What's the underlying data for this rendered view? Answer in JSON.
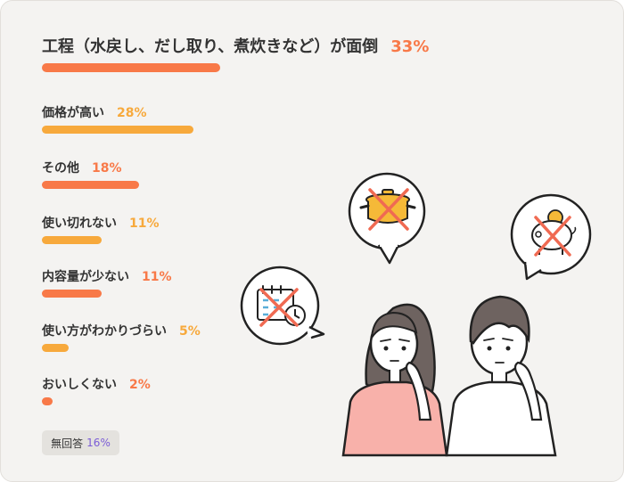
{
  "chart_data": {
    "type": "bar",
    "orientation": "horizontal",
    "categories": [
      "工程（水戻し、だし取り、煮炊きなど）が面倒",
      "価格が高い",
      "その他",
      "使い切れない",
      "内容量が少ない",
      "使い方がわかりづらい",
      "おいしくない"
    ],
    "values": [
      33,
      28,
      18,
      11,
      11,
      5,
      2
    ],
    "value_labels": [
      "33%",
      "28%",
      "18%",
      "11%",
      "11%",
      "5%",
      "2%"
    ],
    "colors": [
      "#f87948",
      "#f7a93c",
      "#f87948",
      "#f7a93c",
      "#f87948",
      "#f7a93c",
      "#f87948"
    ],
    "no_answer": {
      "label": "無回答",
      "value": 16,
      "value_label": "16%",
      "color": "#7b5cd6"
    }
  }
}
